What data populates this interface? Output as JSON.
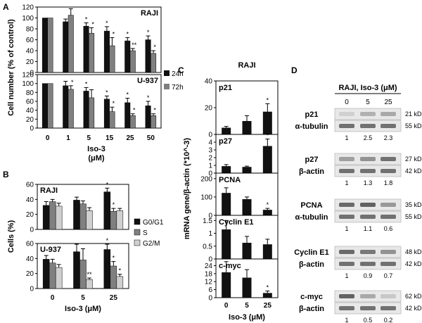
{
  "colors": {
    "dark": "#111111",
    "mid": "#808080",
    "light": "#d0d0d0",
    "blot_bg": "#e8e8e8",
    "band": "#4a4a4a"
  },
  "panels": {
    "A": "A",
    "B": "B",
    "C": "C",
    "D": "D"
  },
  "chart_data": [
    {
      "id": "A",
      "type": "bar",
      "ylabel": "Cell number (% of control)",
      "xlabel": "Iso-3",
      "xlabel_unit": "(μM)",
      "categories": [
        "0",
        "1",
        "5",
        "15",
        "25",
        "50"
      ],
      "legend": [
        "24h",
        "72h"
      ],
      "subplots": [
        {
          "title": "RAJI",
          "ylim": [
            0,
            120
          ],
          "yticks": [
            "0",
            "20",
            "40",
            "60",
            "80",
            "100",
            "120"
          ],
          "series": [
            {
              "name": "24h",
              "values": [
                100,
                93,
                85,
                76,
                58,
                60
              ],
              "errors": [
                0,
                5,
                6,
                8,
                6,
                7
              ]
            },
            {
              "name": "72h",
              "values": [
                100,
                105,
                72,
                49,
                40,
                35
              ],
              "errors": [
                0,
                12,
                10,
                15,
                4,
                5
              ]
            }
          ],
          "stars": [
            [
              "",
              ""
            ],
            [
              "",
              ""
            ],
            [
              "*",
              "*"
            ],
            [
              "*",
              "*"
            ],
            [
              "*",
              "**"
            ],
            [
              "*",
              "*"
            ]
          ]
        },
        {
          "title": "U-937",
          "ylim": [
            0,
            120
          ],
          "yticks": [
            "0",
            "20",
            "40",
            "60",
            "80",
            "100",
            "120"
          ],
          "series": [
            {
              "name": "24h",
              "values": [
                100,
                95,
                83,
                65,
                57,
                50
              ],
              "errors": [
                0,
                10,
                8,
                7,
                10,
                10
              ]
            },
            {
              "name": "72h",
              "values": [
                100,
                87,
                68,
                37,
                28,
                28
              ],
              "errors": [
                0,
                8,
                18,
                10,
                4,
                4
              ]
            }
          ],
          "stars": [
            [
              "",
              ""
            ],
            [
              "",
              "*"
            ],
            [
              "*",
              ""
            ],
            [
              "*",
              "*"
            ],
            [
              "*",
              "*"
            ],
            [
              "*",
              "*"
            ]
          ]
        }
      ]
    },
    {
      "id": "B",
      "type": "bar",
      "ylabel": "Cells (%)",
      "xlabel": "Iso-3 (μM)",
      "categories": [
        "0",
        "5",
        "25"
      ],
      "legend": [
        "G0/G1",
        "S",
        "G2/M"
      ],
      "subplots": [
        {
          "title": "RAJI",
          "ylim": [
            0,
            60
          ],
          "yticks": [
            "0",
            "20",
            "40",
            "60"
          ],
          "series": [
            {
              "name": "G0/G1",
              "values": [
                32,
                39,
                50
              ],
              "errors": [
                5,
                4,
                5
              ]
            },
            {
              "name": "S",
              "values": [
                37,
                34,
                24
              ],
              "errors": [
                3,
                4,
                4
              ]
            },
            {
              "name": "G2/M",
              "values": [
                31,
                25,
                25
              ],
              "errors": [
                4,
                4,
                3
              ]
            }
          ],
          "stars": [
            [
              "",
              "",
              ""
            ],
            [
              "",
              "",
              ""
            ],
            [
              "*",
              "*",
              ""
            ]
          ]
        },
        {
          "title": "U-937",
          "ylim": [
            0,
            60
          ],
          "yticks": [
            "0",
            "20",
            "40",
            "60"
          ],
          "series": [
            {
              "name": "G0/G1",
              "values": [
                39,
                49,
                52
              ],
              "errors": [
                5,
                10,
                7
              ]
            },
            {
              "name": "S",
              "values": [
                34,
                38,
                30
              ],
              "errors": [
                5,
                15,
                6
              ]
            },
            {
              "name": "G2/M",
              "values": [
                28,
                12,
                16
              ],
              "errors": [
                4,
                2,
                3
              ]
            }
          ],
          "stars": [
            [
              "",
              "",
              ""
            ],
            [
              "",
              "",
              "**"
            ],
            [
              "*",
              "*",
              "*"
            ]
          ]
        }
      ]
    },
    {
      "id": "C",
      "type": "bar",
      "title": "RAJI",
      "ylabel": "mRNA gene/β-actin (*10^-3)",
      "xlabel": "Iso-3 (μM)",
      "categories": [
        "0",
        "5",
        "25"
      ],
      "subplots": [
        {
          "title": "p21",
          "ylim": [
            0,
            40
          ],
          "yticks": [
            "0",
            "20",
            "40"
          ],
          "values": [
            5,
            10,
            17
          ],
          "errors": [
            1,
            4,
            6
          ],
          "stars": [
            "",
            "",
            "*"
          ]
        },
        {
          "title": "p27",
          "ylim": [
            0,
            5
          ],
          "yticks": [
            "0",
            "1",
            "2",
            "3",
            "4"
          ],
          "values": [
            0.9,
            0.8,
            3.5
          ],
          "errors": [
            0.2,
            0.1,
            0.9
          ],
          "stars": [
            "",
            "",
            "*"
          ]
        },
        {
          "title": "PCNA",
          "ylim": [
            0,
            230
          ],
          "yticks": [
            "0",
            "100",
            "200"
          ],
          "values": [
            122,
            88,
            30
          ],
          "errors": [
            28,
            12,
            8
          ],
          "stars": [
            "",
            "",
            "*"
          ]
        },
        {
          "title": "Cyclin E1",
          "ylim": [
            0,
            1.7
          ],
          "yticks": [
            "0",
            "0.5",
            "1",
            "1.5"
          ],
          "values": [
            1.15,
            0.63,
            0.57
          ],
          "errors": [
            0.35,
            0.25,
            0.2
          ],
          "stars": [
            "",
            "",
            ""
          ]
        },
        {
          "title": "c-myc",
          "ylim": [
            0,
            29
          ],
          "yticks": [
            "0",
            "6",
            "12",
            "18",
            "24"
          ],
          "values": [
            19,
            15,
            3.5
          ],
          "errors": [
            8,
            6,
            1.5
          ],
          "stars": [
            "",
            "",
            "*"
          ]
        }
      ]
    },
    {
      "id": "D",
      "type": "table",
      "title": "RAJI, Iso-3 (μM)",
      "doses": [
        "0",
        "5",
        "25"
      ],
      "blots": [
        {
          "target": "p21",
          "target_kda": "21 kDa",
          "control": "α-tubulin",
          "control_kda": "55 kDa",
          "ratios": [
            "1",
            "2.5",
            "2.3"
          ],
          "target_intensity": [
            0.15,
            0.35,
            0.4
          ]
        },
        {
          "target": "p27",
          "target_kda": "27 kDa",
          "control": "β-actin",
          "control_kda": "42 kDa",
          "ratios": [
            "1",
            "1.3",
            "1.8"
          ],
          "target_intensity": [
            0.45,
            0.55,
            0.75
          ]
        },
        {
          "target": "PCNA",
          "target_kda": "35 kDa",
          "control": "α-tubulin",
          "control_kda": "55 kDa",
          "ratios": [
            "1",
            "1.1",
            "0.6"
          ],
          "target_intensity": [
            0.8,
            0.85,
            0.5
          ]
        },
        {
          "target": "Cyclin E1",
          "target_kda": "48 kDa",
          "control": "β-actin",
          "control_kda": "42 kDa",
          "ratios": [
            "1",
            "0.9",
            "0.7"
          ],
          "target_intensity": [
            0.8,
            0.7,
            0.55
          ]
        },
        {
          "target": "c-myc",
          "target_kda": "62 kDa",
          "control": "β-actin",
          "control_kda": "42 kDa",
          "ratios": [
            "1",
            "0.5",
            "0.2"
          ],
          "target_intensity": [
            0.85,
            0.4,
            0.2
          ]
        }
      ]
    }
  ]
}
